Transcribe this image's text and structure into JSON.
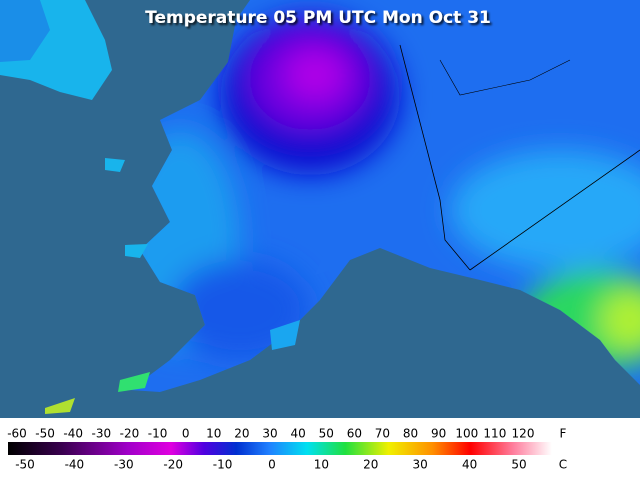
{
  "title": "Temperature 05 PM UTC Mon Oct 31",
  "legend": {
    "fahrenheit": {
      "unit": "F",
      "labels": [
        -60,
        -50,
        -40,
        -30,
        -20,
        -10,
        0,
        10,
        20,
        30,
        40,
        50,
        60,
        70,
        80,
        90,
        100,
        110,
        120
      ]
    },
    "celsius": {
      "unit": "C",
      "labels": [
        -50,
        -40,
        -30,
        -20,
        -10,
        0,
        10,
        20,
        30,
        40,
        50
      ]
    }
  }
}
